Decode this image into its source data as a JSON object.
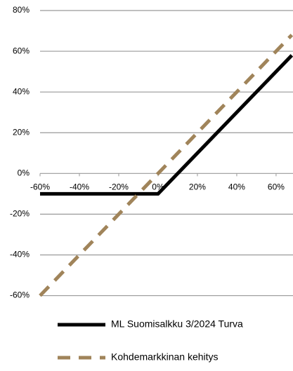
{
  "chart_data": {
    "type": "line",
    "x": [
      -60,
      0,
      68
    ],
    "series": [
      {
        "name": "ML Suomisalkku 3/2024 Turva",
        "color": "#000000",
        "dash": false,
        "values": [
          -10,
          -10,
          58
        ]
      },
      {
        "name": "Kohdemarkkinan kehitys",
        "color": "#a0845a",
        "dash": true,
        "values": [
          -60,
          0,
          68
        ]
      }
    ],
    "xlim": [
      -60,
      68.6
    ],
    "ylim": [
      -66,
      80
    ],
    "xticks": [
      {
        "value": -60,
        "label": "-60%"
      },
      {
        "value": -40,
        "label": "-40%"
      },
      {
        "value": -20,
        "label": "-20%"
      },
      {
        "value": 0,
        "label": "0%"
      },
      {
        "value": 20,
        "label": "20%"
      },
      {
        "value": 40,
        "label": "40%"
      },
      {
        "value": 60,
        "label": "60%"
      }
    ],
    "yticks": [
      {
        "value": -60,
        "label": "-60%"
      },
      {
        "value": -40,
        "label": "-40%"
      },
      {
        "value": -20,
        "label": "-20%"
      },
      {
        "value": 0,
        "label": "0%"
      },
      {
        "value": 20,
        "label": "20%"
      },
      {
        "value": 40,
        "label": "40%"
      },
      {
        "value": 60,
        "label": "60%"
      },
      {
        "value": 80,
        "label": "80%"
      }
    ],
    "grid": true
  }
}
